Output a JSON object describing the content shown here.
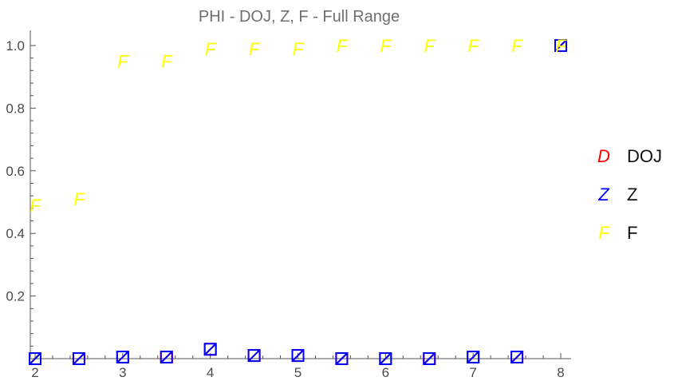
{
  "chart_data": {
    "type": "scatter",
    "title": "PHI - DOJ, Z, F - Full Range",
    "xlabel": "",
    "ylabel": "",
    "xlim": [
      2,
      8
    ],
    "ylim": [
      0,
      1.02
    ],
    "x_ticks": [
      2,
      3,
      4,
      5,
      6,
      7,
      8
    ],
    "x_tick_labels": [
      "2",
      "3",
      "4",
      "5",
      "6",
      "7",
      "8"
    ],
    "y_ticks": [
      0.2,
      0.4,
      0.6,
      0.8,
      1.0
    ],
    "y_tick_labels": [
      "0.2",
      "0.4",
      "0.6",
      "0.8",
      "1.0"
    ],
    "grid": false,
    "legend_position": "right",
    "x": [
      2,
      2.5,
      3,
      3.5,
      4,
      4.5,
      5,
      5.5,
      6,
      6.5,
      7,
      7.5,
      8
    ],
    "series": [
      {
        "name": "DOJ",
        "marker": "D",
        "color": "#ff0000",
        "values": [
          0.0,
          0.0,
          0.005,
          0.005,
          0.03,
          0.01,
          0.01,
          0.0,
          0.0,
          0.0,
          0.005,
          0.005,
          1.0
        ]
      },
      {
        "name": "Z",
        "marker": "Z",
        "color": "#0000ff",
        "values": [
          0.0,
          0.0,
          0.005,
          0.005,
          0.03,
          0.01,
          0.01,
          0.0,
          0.0,
          0.0,
          0.005,
          0.005,
          1.0
        ]
      },
      {
        "name": "F",
        "marker": "F",
        "color": "#ffff00",
        "values": [
          0.49,
          0.51,
          0.95,
          0.95,
          0.99,
          0.99,
          0.99,
          1.0,
          1.0,
          1.0,
          1.0,
          1.0,
          1.0
        ]
      }
    ]
  }
}
